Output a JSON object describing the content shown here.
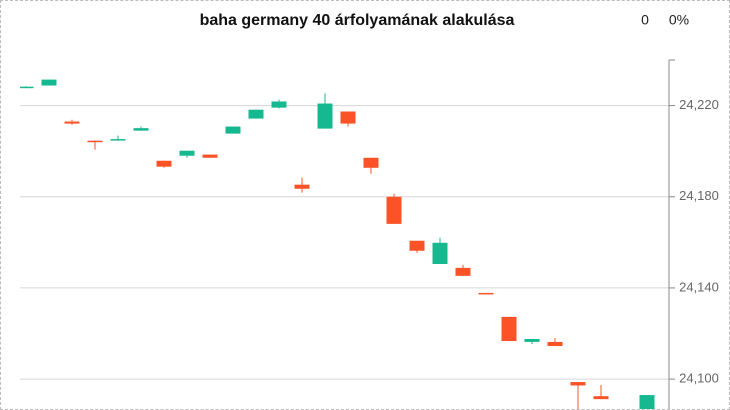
{
  "chart_data": {
    "type": "candlestick",
    "title": "baha germany 40 árfolyamának alakulása",
    "header_value": "0",
    "header_percent": "0%",
    "categories": [
      null,
      null,
      null,
      null,
      null,
      null,
      null,
      null,
      null,
      null,
      null,
      null,
      null,
      null,
      null,
      null,
      null,
      null,
      null,
      null,
      null,
      null,
      null,
      null,
      null,
      null,
      null,
      null
    ],
    "open": [
      24228,
      24228.8,
      24213.0,
      24204.6,
      24204.8,
      24209.0,
      24195.8,
      24198.0,
      24198.5,
      24207.7,
      24214.3,
      24219.1,
      24185.3,
      24209.9,
      24217.4,
      24197.1,
      24180.0,
      24160.7,
      24150.5,
      24148.8,
      24137.8,
      24127.3,
      24116.3,
      24116.3,
      24098.7,
      24092.5,
      null,
      24086
    ],
    "high": [
      24228.5,
      24231.4,
      24213.8,
      24204.6,
      24206.8,
      24210.8,
      24195.8,
      24200.2,
      24198.5,
      24210.8,
      24218.2,
      24222.6,
      24188.4,
      24225.3,
      24217.4,
      24197.1,
      24181.3,
      24160.7,
      24162.0,
      24150.1,
      24137.8,
      24127.3,
      24117.6,
      24118.0,
      24098.7,
      24097.4,
      null,
      24093.0
    ],
    "low": [
      24227.8,
      24228.8,
      24211.6,
      24200.7,
      24204.6,
      24209.0,
      24192.7,
      24197.1,
      24197.1,
      24207.7,
      24214.3,
      24218.7,
      24181.8,
      24209.9,
      24210.8,
      24190.1,
      24168.1,
      24155.4,
      24150.5,
      24145.3,
      24137.4,
      24116.7,
      24115.4,
      24114.5,
      24086,
      24091.2,
      null,
      24086
    ],
    "close": [
      24228.3,
      24231.4,
      24212.1,
      24204.4,
      24205.3,
      24210.1,
      24193.2,
      24200.2,
      24197.1,
      24210.8,
      24218.2,
      24221.8,
      24183.5,
      24220.9,
      24212.1,
      24192.7,
      24168.1,
      24156.3,
      24159.8,
      24145.3,
      24137.4,
      24116.7,
      24117.6,
      24114.5,
      24097.2,
      24091.2,
      null,
      24093.0
    ],
    "up_color": "#16b88f",
    "down_color": "#fb5327",
    "ylim": [
      24086,
      24240
    ],
    "yticks": [
      {
        "value": 24100,
        "label": "24,100"
      },
      {
        "value": 24140,
        "label": "24,140"
      },
      {
        "value": 24180,
        "label": "24,180"
      },
      {
        "value": 24220,
        "label": "24,220"
      }
    ],
    "grid": true
  }
}
